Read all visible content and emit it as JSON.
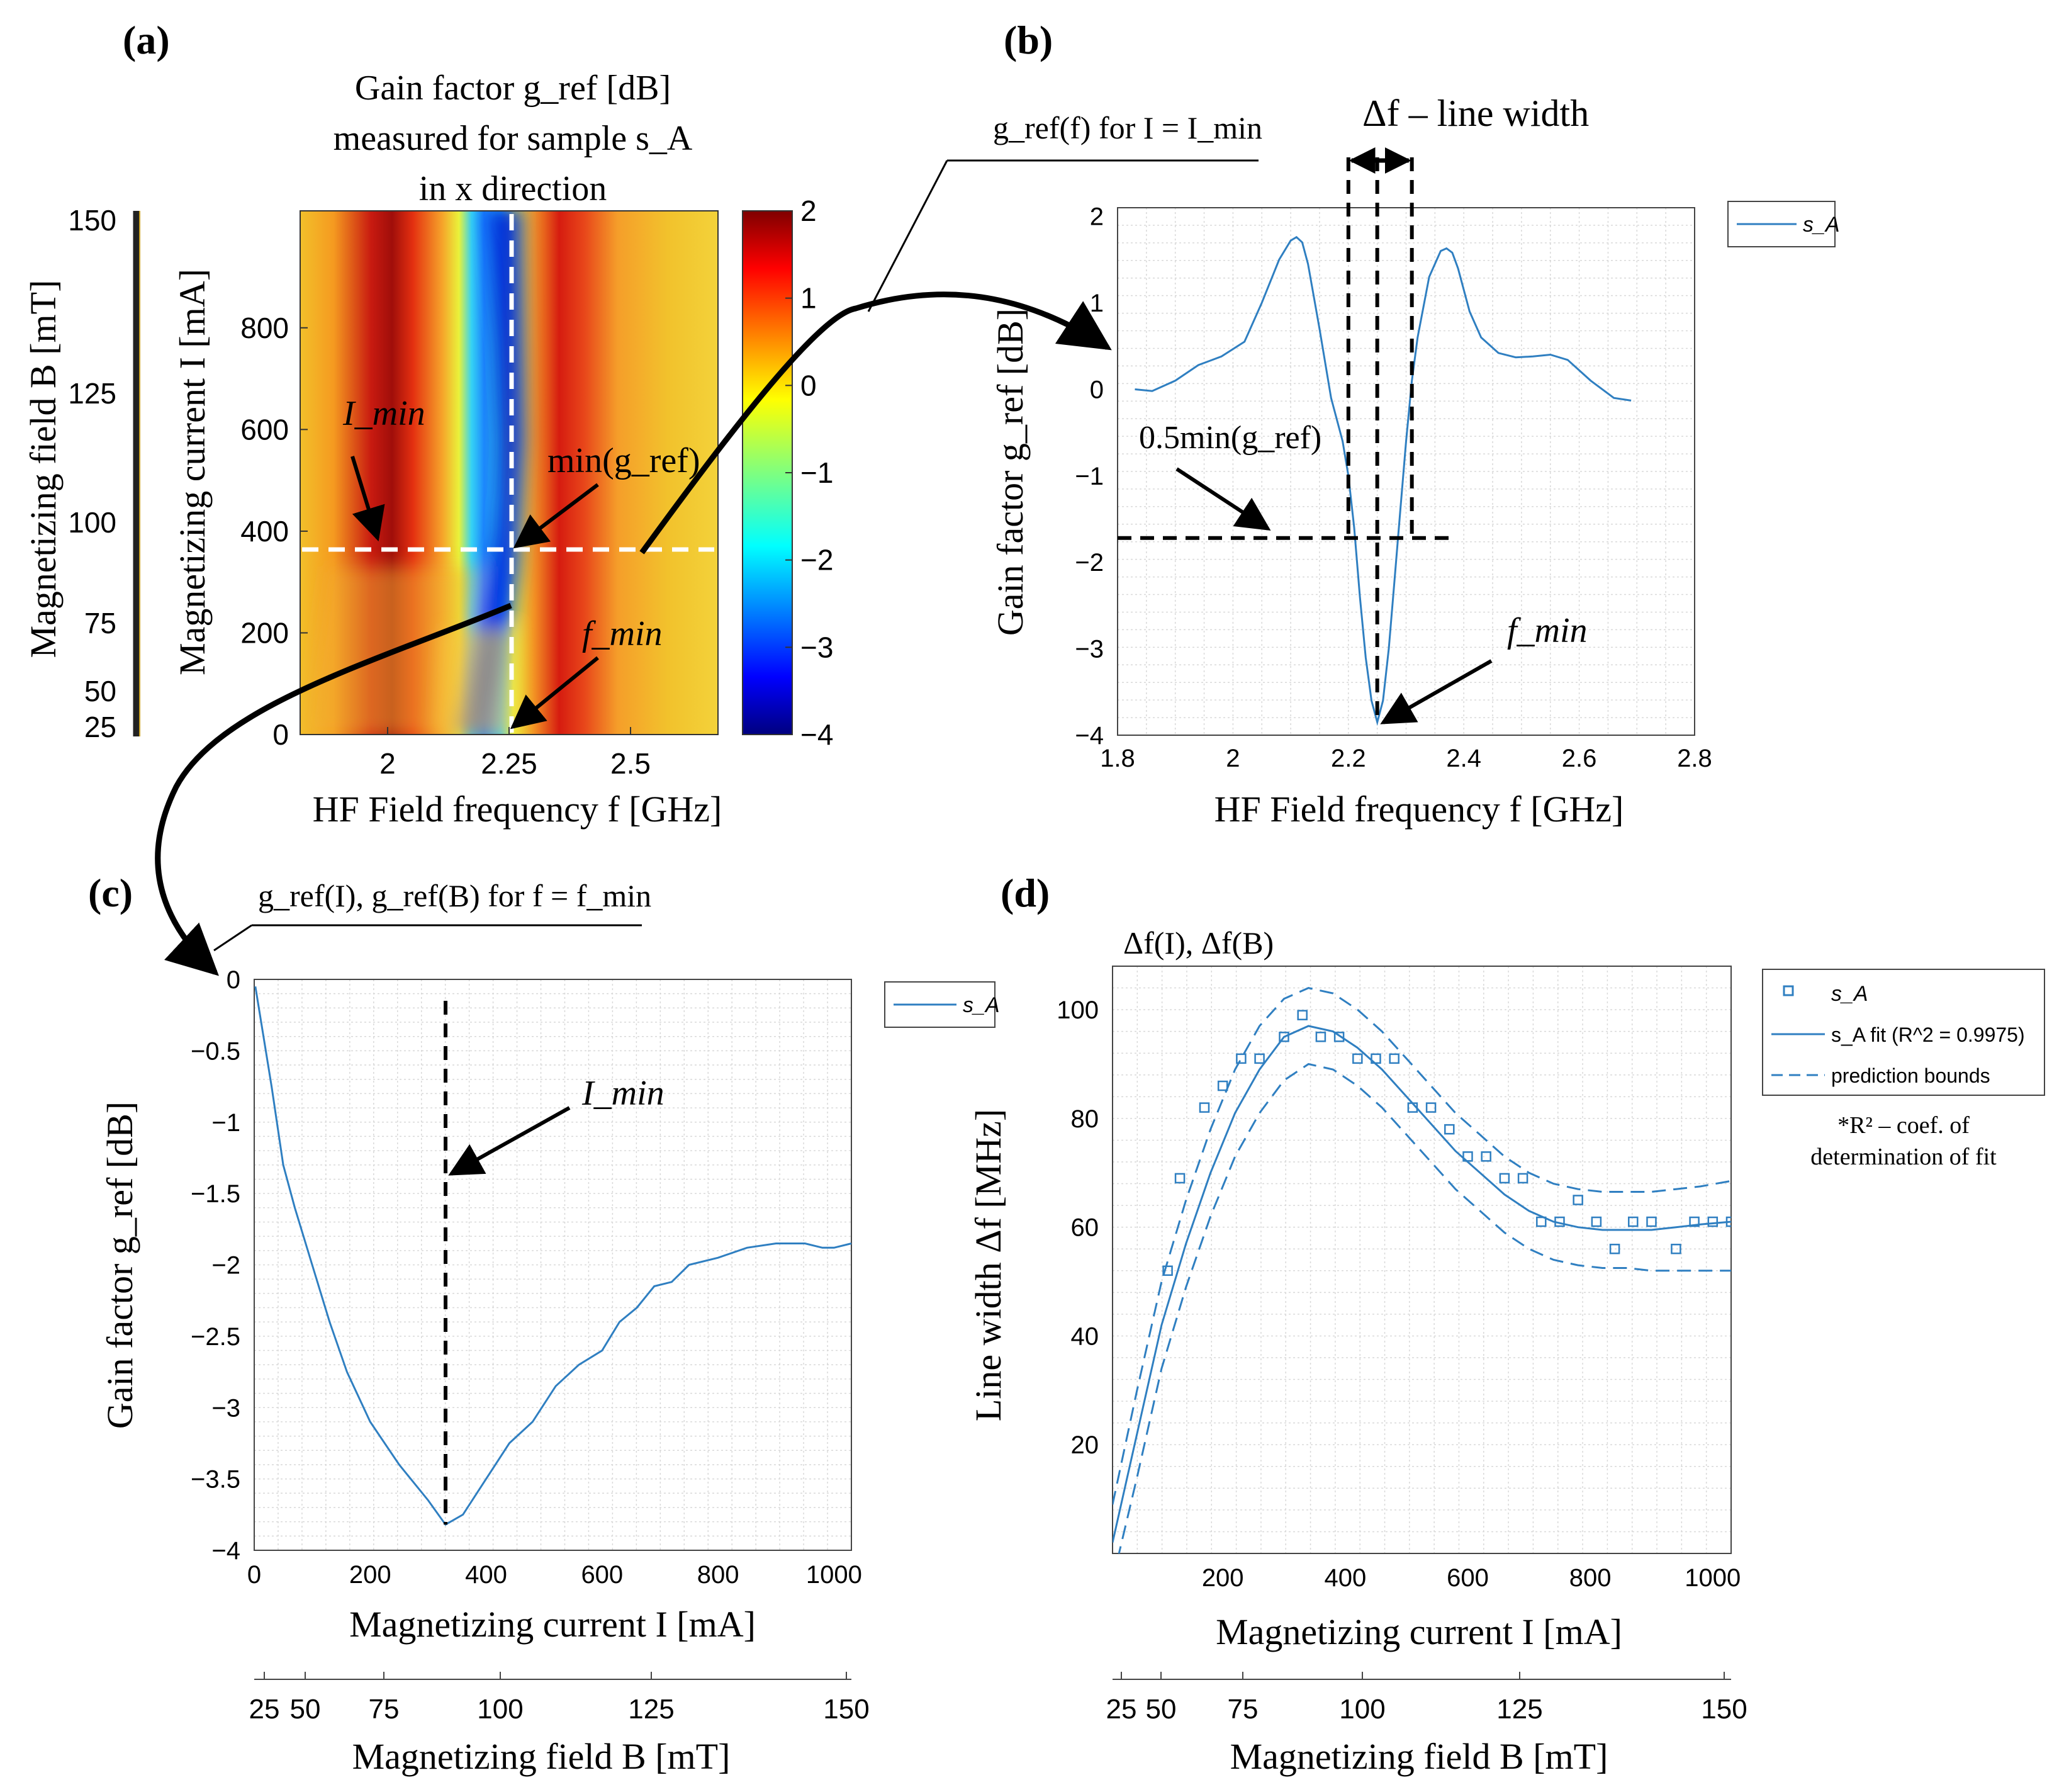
{
  "figure": {
    "panels": {
      "a": {
        "letter": "(a)",
        "title_lines": [
          "Gain factor g_ref [dB]",
          "measured for sample s_A",
          "in x direction"
        ],
        "xlabel": "HF Field frequency f [GHz]",
        "ylabel": "Magnetizing current I [mA]",
        "ylabel2": "Magnetizing field B [mT]",
        "xticks": [
          "2",
          "2.25",
          "2.5"
        ],
        "yticks": [
          "0",
          "200",
          "400",
          "600",
          "800"
        ],
        "ticks_B": [
          "25",
          "50",
          "75",
          "100",
          "125",
          "150"
        ],
        "colorbar_ticks": [
          "2",
          "1",
          "0",
          "−1",
          "−2",
          "−3",
          "−4"
        ],
        "annotations": {
          "imin": "I_min",
          "min_g": "min(g_ref)",
          "fmin": "f_min"
        }
      },
      "b": {
        "letter": "(b)",
        "header": "g_ref(f) for I = I_min",
        "title": "Δf – line width",
        "xlabel": "HF Field frequency f [GHz]",
        "ylabel": "Gain factor g_ref [dB]",
        "legend": "s_A",
        "xticks": [
          "1.8",
          "2",
          "2.2",
          "2.4",
          "2.6",
          "2.8"
        ],
        "yticks": [
          "2",
          "1",
          "0",
          "−1",
          "−2",
          "−3",
          "−4"
        ],
        "annotations": {
          "half_min": "0.5min(g_ref)",
          "fmin": "f_min"
        }
      },
      "c": {
        "letter": "(c)",
        "header": "g_ref(I), g_ref(B) for f = f_min",
        "xlabel": "Magnetizing current I [mA]",
        "xlabel2": "Magnetizing field B [mT]",
        "ylabel": "Gain factor g_ref [dB]",
        "legend": "s_A",
        "xticks": [
          "0",
          "200",
          "400",
          "600",
          "800",
          "1000"
        ],
        "yticks": [
          "0",
          "−0.5",
          "−1",
          "−1.5",
          "−2",
          "−2.5",
          "−3",
          "−3.5",
          "−4"
        ],
        "xticks2": [
          "25",
          "50",
          "75",
          "100",
          "125",
          "150"
        ],
        "annotations": {
          "imin": "I_min"
        }
      },
      "d": {
        "letter": "(d)",
        "header": "Δf(I), Δf(B)",
        "xlabel": "Magnetizing current I [mA]",
        "xlabel2": "Magnetizing field B [mT]",
        "ylabel": "Line width Δf [MHz]",
        "legend": [
          "s_A",
          "s_A fit (R^2 = 0.9975)",
          "prediction bounds"
        ],
        "note_lines": [
          "*R² – coef. of",
          "determination of fit"
        ],
        "xticks": [
          "200",
          "400",
          "600",
          "800",
          "1000"
        ],
        "yticks": [
          "20",
          "40",
          "60",
          "80",
          "100"
        ],
        "xticks2": [
          "25",
          "50",
          "75",
          "100",
          "125",
          "150"
        ]
      }
    }
  },
  "chart_data": [
    {
      "panel": "a",
      "type": "heatmap",
      "title": "Gain factor g_ref [dB] measured for sample s_A in x direction",
      "xlabel": "HF Field frequency f [GHz]",
      "ylabel": "Magnetizing current I [mA]",
      "xlim": [
        1.82,
        2.68
      ],
      "ylim": [
        0,
        1030
      ],
      "clim": [
        -4,
        2
      ],
      "colormap": "jet",
      "ridges_db": [
        {
          "f": 2.25,
          "value": -3.8,
          "note": "minimum valley"
        },
        {
          "f": 2.12,
          "value": 1.8,
          "note": "peak"
        },
        {
          "f": 2.38,
          "value": 1.6,
          "note": "peak"
        }
      ],
      "I_min_mA": 330,
      "f_min_GHz": 2.25
    },
    {
      "panel": "b",
      "type": "line",
      "xlabel": "HF Field frequency f [GHz]",
      "ylabel": "Gain factor g_ref [dB]",
      "xlim": [
        1.8,
        2.8
      ],
      "ylim": [
        -4,
        2.1
      ],
      "grid": true,
      "legend_position": "outside-top-right",
      "series": [
        {
          "name": "s_A",
          "x": [
            1.83,
            1.86,
            1.9,
            1.94,
            1.98,
            2.02,
            2.05,
            2.08,
            2.1,
            2.11,
            2.12,
            2.13,
            2.15,
            2.17,
            2.19,
            2.2,
            2.21,
            2.22,
            2.23,
            2.24,
            2.25,
            2.26,
            2.27,
            2.28,
            2.29,
            2.3,
            2.31,
            2.32,
            2.34,
            2.36,
            2.37,
            2.38,
            2.39,
            2.41,
            2.43,
            2.46,
            2.49,
            2.52,
            2.55,
            2.58,
            2.62,
            2.66,
            2.69
          ],
          "y": [
            0.0,
            -0.02,
            0.1,
            0.28,
            0.38,
            0.55,
            1.0,
            1.5,
            1.72,
            1.76,
            1.7,
            1.45,
            0.7,
            -0.1,
            -0.6,
            -1.0,
            -1.6,
            -2.4,
            -3.1,
            -3.6,
            -3.85,
            -3.6,
            -3.0,
            -2.2,
            -1.4,
            -0.6,
            0.1,
            0.6,
            1.3,
            1.6,
            1.63,
            1.58,
            1.4,
            0.9,
            0.6,
            0.42,
            0.37,
            0.38,
            0.4,
            0.34,
            0.1,
            -0.1,
            -0.13
          ]
        }
      ],
      "min_value_db": -3.85,
      "half_min_db": -1.72,
      "f_min_GHz": 2.25,
      "line_width_edges_GHz": [
        2.2,
        2.31
      ]
    },
    {
      "panel": "c",
      "type": "line",
      "xlabel": "Magnetizing current I [mA]",
      "xlabel2": "Magnetizing field B [mT]",
      "ylabel": "Gain factor g_ref [dB]",
      "xlim": [
        0,
        1030
      ],
      "ylim": [
        -4,
        0
      ],
      "grid": true,
      "legend_position": "outside-top-right",
      "series": [
        {
          "name": "s_A",
          "x": [
            2,
            10,
            20,
            30,
            50,
            70,
            100,
            130,
            160,
            200,
            250,
            300,
            330,
            360,
            400,
            440,
            480,
            520,
            560,
            600,
            630,
            660,
            690,
            720,
            750,
            800,
            850,
            900,
            950,
            980,
            1000,
            1030
          ],
          "y": [
            -0.05,
            -0.25,
            -0.5,
            -0.75,
            -1.3,
            -1.6,
            -2.0,
            -2.4,
            -2.75,
            -3.1,
            -3.4,
            -3.65,
            -3.82,
            -3.75,
            -3.5,
            -3.25,
            -3.1,
            -2.85,
            -2.7,
            -2.6,
            -2.4,
            -2.3,
            -2.15,
            -2.12,
            -2.0,
            -1.95,
            -1.88,
            -1.85,
            -1.85,
            -1.88,
            -1.88,
            -1.85
          ]
        }
      ],
      "I_min_mA": 330
    },
    {
      "panel": "d",
      "type": "scatter",
      "xlabel": "Magnetizing current I [mA]",
      "xlabel2": "Magnetizing field B [mT]",
      "ylabel": "Line width Δf [MHz]",
      "xlim": [
        20,
        1030
      ],
      "ylim": [
        0,
        108
      ],
      "grid": true,
      "legend_position": "outside-top-right",
      "series": [
        {
          "name": "s_A",
          "x": [
            110,
            130,
            170,
            200,
            230,
            260,
            300,
            330,
            360,
            390,
            420,
            450,
            480,
            510,
            540,
            570,
            600,
            630,
            660,
            690,
            720,
            750,
            780,
            810,
            840,
            870,
            900,
            940,
            970,
            1000,
            1030
          ],
          "y": [
            52,
            69,
            82,
            86,
            91,
            91,
            95,
            99,
            95,
            95,
            91,
            91,
            91,
            82,
            82,
            78,
            73,
            73,
            69,
            69,
            61,
            61,
            65,
            61,
            56,
            61,
            61,
            56,
            61,
            61,
            61
          ]
        },
        {
          "name": "s_A fit (R^2 = 0.9975)",
          "x": [
            20,
            60,
            100,
            140,
            180,
            220,
            260,
            300,
            340,
            380,
            420,
            460,
            500,
            540,
            580,
            620,
            660,
            700,
            740,
            780,
            820,
            860,
            900,
            940,
            980,
            1030
          ],
          "y": [
            2,
            22,
            42,
            57,
            70,
            81,
            89,
            95,
            97,
            96,
            93,
            89,
            84,
            79,
            74,
            70,
            66,
            63,
            61,
            60,
            59.5,
            59.5,
            59.5,
            60,
            60.5,
            61
          ]
        },
        {
          "name": "prediction bounds",
          "x": [
            20,
            60,
            100,
            140,
            180,
            220,
            260,
            300,
            340,
            380,
            420,
            460,
            500,
            540,
            580,
            620,
            660,
            700,
            740,
            780,
            820,
            860,
            900,
            940,
            980,
            1030
          ],
          "y": [
            9,
            30,
            50,
            65,
            78,
            89,
            97,
            102,
            104,
            103,
            100,
            96,
            91,
            86,
            81,
            77,
            73,
            70,
            68,
            67,
            66.5,
            66.5,
            66.5,
            67,
            67.5,
            68.5
          ]
        },
        {
          "name": "prediction bounds",
          "x": [
            20,
            60,
            100,
            140,
            180,
            220,
            260,
            300,
            340,
            380,
            420,
            460,
            500,
            540,
            580,
            620,
            660,
            700,
            740,
            780,
            820,
            860,
            900,
            940,
            980,
            1030
          ],
          "y": [
            -5,
            14,
            34,
            49,
            62,
            73,
            81,
            87,
            90,
            89,
            86,
            82,
            77,
            72,
            67,
            63,
            59,
            56,
            54,
            53,
            52.5,
            52.5,
            52,
            52,
            52,
            52
          ]
        }
      ]
    }
  ]
}
